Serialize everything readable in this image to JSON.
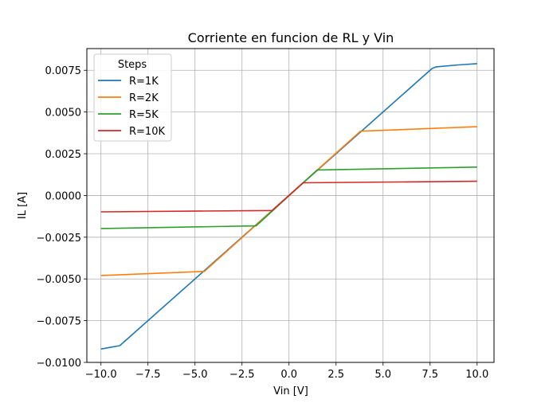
{
  "chart_data": {
    "type": "line",
    "title": "Corriente en funcion de RL y Vin",
    "xlabel": "Vin [V]",
    "ylabel": "IL [A]",
    "xlim": [
      -10.75,
      10.9
    ],
    "ylim": [
      -0.01,
      0.0088
    ],
    "xticks": [
      -10.0,
      -7.5,
      -5.0,
      -2.5,
      0.0,
      2.5,
      5.0,
      7.5,
      10.0
    ],
    "xtick_labels": [
      "−10.0",
      "−7.5",
      "−5.0",
      "−2.5",
      "0.0",
      "2.5",
      "5.0",
      "7.5",
      "10.0"
    ],
    "yticks": [
      -0.01,
      -0.0075,
      -0.005,
      -0.0025,
      0.0,
      0.0025,
      0.005,
      0.0075
    ],
    "ytick_labels": [
      "−0.0100",
      "−0.0075",
      "−0.0050",
      "−0.0025",
      "0.0000",
      "0.0025",
      "0.0050",
      "0.0075"
    ],
    "grid": true,
    "legend": {
      "title": "Steps",
      "placement": "upper-left"
    },
    "series": [
      {
        "name": "R=1K",
        "color": "#1f77b4",
        "x": [
          -10.0,
          -9.5,
          -9.0,
          7.6,
          7.8,
          8.0,
          9.0,
          10.0
        ],
        "y": [
          -0.0092,
          -0.0091,
          -0.009,
          0.0076,
          0.0077,
          0.00772,
          0.00782,
          0.0079
        ]
      },
      {
        "name": "R=2K",
        "color": "#ff7f0e",
        "x": [
          -10.0,
          -4.5,
          3.8,
          10.0
        ],
        "y": [
          -0.0048,
          -0.00455,
          0.00385,
          0.00412
        ]
      },
      {
        "name": "R=5K",
        "color": "#2ca02c",
        "x": [
          -10.0,
          -1.75,
          1.5,
          10.0
        ],
        "y": [
          -0.00198,
          -0.00182,
          0.00153,
          0.0017
        ]
      },
      {
        "name": "R=10K",
        "color": "#d62728",
        "x": [
          -10.0,
          -0.9,
          0.75,
          10.0
        ],
        "y": [
          -0.00098,
          -0.0009,
          0.00076,
          0.00085
        ]
      }
    ]
  }
}
